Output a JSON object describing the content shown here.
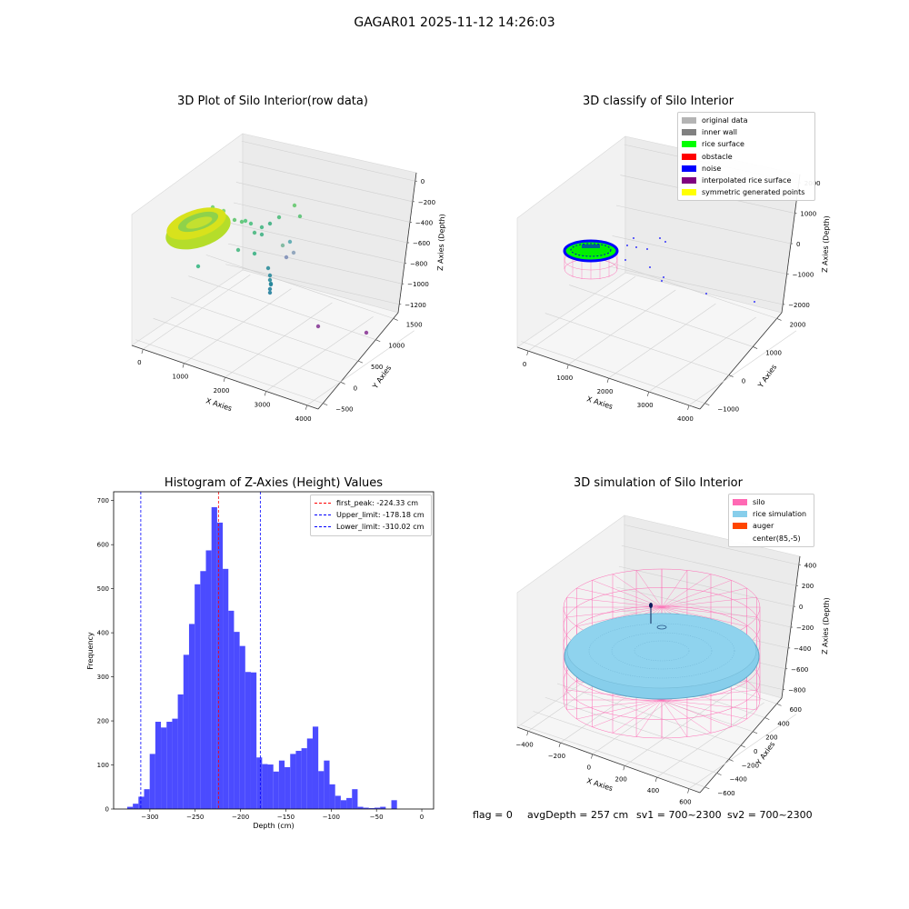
{
  "figure": {
    "suptitle": "GAGAR01 2025-11-12 14:26:03",
    "footer": {
      "flag": "flag = 0",
      "avg": "avgDepth = 257 cm",
      "sv1": "sv1 = 700~2300",
      "sv2": "sv2 = 700~2300"
    }
  },
  "chart_data": [
    {
      "type": "scatter",
      "title": "3D Plot of Silo Interior(row data)",
      "xlabel": "X Axies",
      "ylabel": "Y Axies",
      "zlabel": "Z Axies (Depth)",
      "x_ticks": [
        "0",
        "1000",
        "2000",
        "3000",
        "4000"
      ],
      "y_ticks": [
        "−500",
        "0",
        "500",
        "1000",
        "1500"
      ],
      "z_ticks": [
        "−1200",
        "−1000",
        "−800",
        "−600",
        "−400",
        "−200",
        "0"
      ],
      "colormap": "viridis",
      "grid": true
    },
    {
      "type": "scatter",
      "title": "3D classify of Silo Interior",
      "xlabel": "X Axies",
      "ylabel": "Y Axies",
      "zlabel": "Z Axies (Depth)",
      "x_ticks": [
        "0",
        "1000",
        "2000",
        "3000",
        "4000"
      ],
      "y_ticks": [
        "−1000",
        "0",
        "1000",
        "2000"
      ],
      "z_ticks": [
        "−2000",
        "−1000",
        "0",
        "1000",
        "2000"
      ],
      "legend": [
        {
          "label": "original data",
          "color": "#b4b4b4"
        },
        {
          "label": "inner wall",
          "color": "#808080"
        },
        {
          "label": "rice surface",
          "color": "#00ff00"
        },
        {
          "label": "obstacle",
          "color": "#ff0000"
        },
        {
          "label": "noise",
          "color": "#0000ff"
        },
        {
          "label": "interpolated rice surface",
          "color": "#800080"
        },
        {
          "label": "symmetric generated points",
          "color": "#ffff00"
        }
      ],
      "legend_position": "top-right",
      "grid": true
    },
    {
      "type": "bar",
      "title": "Histogram of Z-Axies (Height) Values",
      "xlabel": "Depth (cm)",
      "ylabel": "Frequency",
      "bin_start": -325,
      "bin_width": 6.2,
      "values": [
        5,
        12,
        28,
        45,
        125,
        198,
        185,
        198,
        205,
        260,
        350,
        420,
        510,
        540,
        587,
        685,
        650,
        545,
        450,
        402,
        370,
        311,
        310,
        117,
        102,
        101,
        85,
        110,
        95,
        125,
        132,
        138,
        160,
        187,
        86,
        110,
        56,
        30,
        20,
        25,
        45,
        5,
        3,
        2,
        3,
        5,
        0,
        20
      ],
      "x_ticks": [
        -300,
        -250,
        -200,
        -150,
        -100,
        -50,
        0
      ],
      "x_tick_labels": [
        "−300",
        "−250",
        "−200",
        "−150",
        "−100",
        "−50",
        "0"
      ],
      "y_ticks": [
        0,
        100,
        200,
        300,
        400,
        500,
        600,
        700
      ],
      "xlim": [
        -340,
        13
      ],
      "ylim": [
        0,
        720
      ],
      "bar_color": "#4b4bff",
      "reference_lines": [
        {
          "label": "first_peak: -224.33 cm",
          "value": -224.33,
          "color": "#ff0000"
        },
        {
          "label": "Upper_limit: -178.18 cm",
          "value": -178.18,
          "color": "#0000ff"
        },
        {
          "label": "Lower_limit: -310.02 cm",
          "value": -310.02,
          "color": "#0000ff"
        }
      ],
      "legend_position": "top-right",
      "grid": false
    },
    {
      "type": "scatter",
      "title": "3D simulation of Silo Interior",
      "xlabel": "X Axies",
      "ylabel": "Y Axies",
      "zlabel": "Z Axies (Depth)",
      "x_ticks": [
        "−400",
        "−200",
        "0",
        "200",
        "400",
        "600"
      ],
      "y_ticks": [
        "−600",
        "−400",
        "−200",
        "0",
        "200",
        "400",
        "600"
      ],
      "z_ticks": [
        "−800",
        "−600",
        "−400",
        "−200",
        "0",
        "200",
        "400"
      ],
      "legend": [
        {
          "label": "silo",
          "color": "#ff69b4"
        },
        {
          "label": "rice simulation",
          "color": "#87ceeb"
        },
        {
          "label": "auger",
          "color": "#ff4500"
        },
        {
          "label": "center(85,-5)",
          "color": "#ffffff"
        }
      ],
      "legend_position": "top-right",
      "grid": true
    }
  ]
}
